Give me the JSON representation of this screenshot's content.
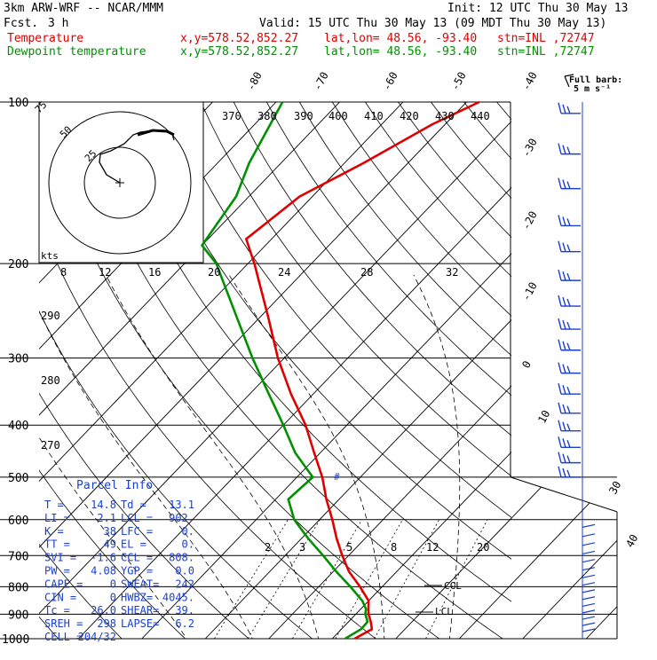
{
  "header": {
    "model": "3km ARW-WRF -- NCAR/MMM",
    "init": "Init: 12 UTC Thu 30 May 13",
    "fcst_label": "Fcst.",
    "fcst_value": "3 h",
    "valid": "Valid: 15 UTC Thu 30 May 13 (09 MDT Thu 30 May 13)",
    "temp_label": "Temperature",
    "dew_label": "Dewpoint temperature",
    "xy": "x,y=578.52,852.27",
    "latlon": "lat,lon= 48.56, -93.40",
    "stn": "stn=INL ,72747"
  },
  "barb_legend": {
    "line1": "Full barb:",
    "line2": "5 m s⁻¹"
  },
  "hodograph": {
    "ring_labels": [
      "50",
      "25"
    ],
    "kts_label": "kts"
  },
  "parcel_info": {
    "title": "Parcel Info",
    "rows": [
      [
        "T  =",
        "14.8",
        "Td =",
        "13.1"
      ],
      [
        "LI =",
        "2.1",
        "LCL =",
        "902."
      ],
      [
        "K  =",
        "38",
        "LFC =",
        "0."
      ],
      [
        "TT =",
        "49",
        "EL  =",
        "0."
      ],
      [
        "SVI =",
        "-1.6",
        "CCL =",
        "808."
      ],
      [
        "PW =",
        "4.08",
        "YGP =",
        "0.0"
      ],
      [
        "CAPE =",
        "0",
        "SWEAT=",
        "242"
      ],
      [
        "CIN =",
        "0",
        "HWBZ=",
        "4045."
      ],
      [
        "Tc =",
        "26.0",
        "SHEAR=",
        "39."
      ],
      [
        "SREH =",
        "298",
        "LAPSE=",
        "6.2"
      ],
      [
        "CELL =",
        "204/32",
        "",
        ""
      ]
    ]
  },
  "annotations": {
    "ccl": "CCL",
    "lcl": "LCL",
    "marker": "#"
  },
  "colors": {
    "temperature": "#e00000",
    "dewpoint": "#009000",
    "info": "#1a3fd0"
  },
  "chart_data": {
    "type": "line",
    "title": "",
    "pressure_levels": [
      100,
      200,
      300,
      400,
      500,
      600,
      700,
      800,
      900,
      1000
    ],
    "pressure_labels": [
      "100",
      "200",
      "300",
      "400",
      "500",
      "600",
      "700",
      "800",
      "900",
      "1000"
    ],
    "isotherm_labels": [
      "-80",
      "-70",
      "-60",
      "-50",
      "-40",
      "-30",
      "-20",
      "-10",
      "0",
      "10",
      "30",
      "40"
    ],
    "theta_labels": [
      "370",
      "380",
      "390",
      "400",
      "410",
      "420",
      "430",
      "440"
    ],
    "theta_low_labels": [
      "290",
      "280",
      "270"
    ],
    "mixing_ratio_labels": [
      "2",
      "3",
      "5",
      "8",
      "12",
      "20"
    ],
    "hodo_speed_labels": [
      "8",
      "12",
      "16",
      "20",
      "24",
      "28",
      "32"
    ],
    "series": [
      {
        "name": "Temperature",
        "color": "#e00000",
        "p": [
          1000,
          960,
          930,
          900,
          880,
          850,
          800,
          750,
          700,
          650,
          600,
          550,
          500,
          450,
          400,
          350,
          300,
          250,
          200,
          180,
          150,
          130,
          110,
          100
        ],
        "t": [
          13.5,
          14.8,
          13.5,
          12.0,
          11.2,
          10.0,
          6.5,
          2.5,
          -1.0,
          -4.5,
          -8.0,
          -12.0,
          -16.0,
          -21.0,
          -26.5,
          -33.5,
          -41.0,
          -49.0,
          -59.0,
          -64.0,
          -62.0,
          -57.0,
          -52.0,
          -48.0
        ]
      },
      {
        "name": "Dewpoint temperature",
        "color": "#009000",
        "p": [
          1000,
          960,
          930,
          900,
          880,
          850,
          800,
          750,
          700,
          650,
          600,
          550,
          500,
          450,
          400,
          350,
          300,
          250,
          200,
          185,
          150,
          130,
          100
        ],
        "t": [
          12.0,
          13.1,
          13.0,
          11.5,
          10.8,
          9.0,
          5.0,
          0.5,
          -4.0,
          -9.0,
          -14.0,
          -18.0,
          -17.5,
          -24.0,
          -30.0,
          -37.0,
          -45.0,
          -54.0,
          -65.0,
          -70.0,
          -72.0,
          -75.0,
          -79.0
        ]
      }
    ]
  }
}
